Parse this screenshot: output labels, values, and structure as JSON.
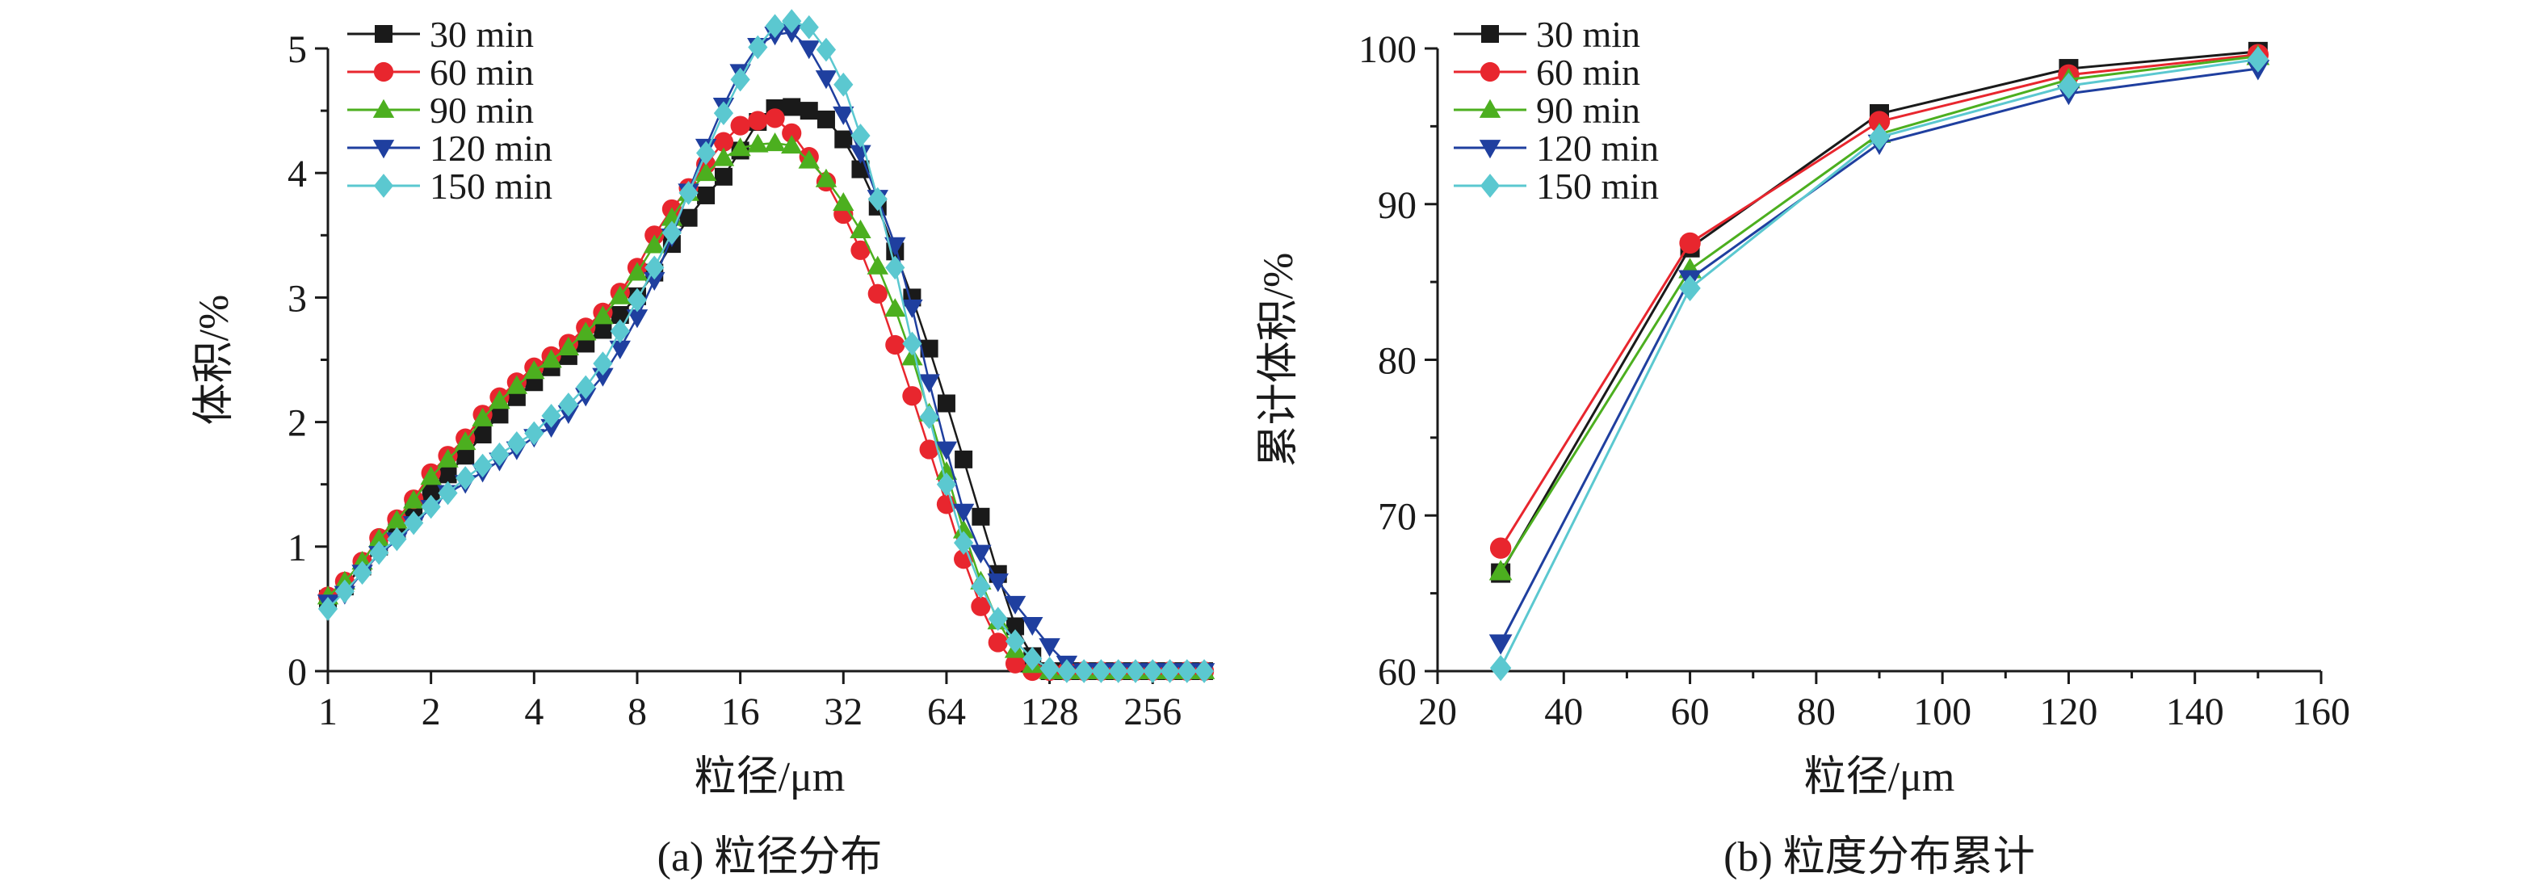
{
  "chart_data": [
    {
      "type": "line",
      "caption": "(a) 粒径分布",
      "xlabel": "粒径/μm",
      "ylabel": "体积/%",
      "xscale": "log2",
      "xlim": [
        1,
        380
      ],
      "ylim": [
        0,
        5
      ],
      "xticks": [
        1,
        2,
        4,
        8,
        16,
        32,
        64,
        128,
        256
      ],
      "xtick_labels": [
        "1",
        "2",
        "4",
        "8",
        "16",
        "32",
        "64",
        "128",
        "256"
      ],
      "yticks": [
        0,
        1,
        2,
        3,
        4,
        5
      ],
      "ytick_labels": [
        "0",
        "1",
        "2",
        "3",
        "4",
        "5"
      ],
      "legend_position": "top-left",
      "x": [
        1.0,
        1.12,
        1.26,
        1.41,
        1.59,
        1.78,
        2.0,
        2.24,
        2.52,
        2.83,
        3.17,
        3.56,
        4.0,
        4.49,
        5.04,
        5.66,
        6.35,
        7.13,
        8.0,
        8.98,
        10.1,
        11.3,
        12.7,
        14.3,
        16.0,
        18.0,
        20.2,
        22.6,
        25.4,
        28.5,
        32.0,
        35.9,
        40.3,
        45.3,
        50.8,
        57.0,
        64.0,
        71.8,
        80.6,
        90.5,
        101.6,
        114.0,
        128.0,
        143.7,
        161.3,
        181.0,
        203.2,
        228.1,
        256.0,
        287.4,
        322.5,
        362.0
      ],
      "series": [
        {
          "name": "30 min",
          "color": "#1a1a1a",
          "marker": "square",
          "values": [
            0.58,
            0.68,
            0.84,
            1.0,
            1.13,
            1.28,
            1.44,
            1.58,
            1.73,
            1.9,
            2.06,
            2.2,
            2.32,
            2.44,
            2.53,
            2.63,
            2.74,
            2.86,
            3.01,
            3.2,
            3.43,
            3.64,
            3.82,
            3.97,
            4.18,
            4.41,
            4.52,
            4.53,
            4.5,
            4.43,
            4.27,
            4.03,
            3.73,
            3.37,
            3.0,
            2.59,
            2.15,
            1.7,
            1.24,
            0.78,
            0.36,
            0.12,
            0.0,
            0.0,
            0.0,
            0.0,
            0.0,
            0.0,
            0.0,
            0.0,
            0.0,
            0.0
          ]
        },
        {
          "name": "60 min",
          "color": "#e8262e",
          "marker": "circle",
          "values": [
            0.6,
            0.72,
            0.88,
            1.07,
            1.22,
            1.38,
            1.59,
            1.73,
            1.87,
            2.06,
            2.2,
            2.32,
            2.44,
            2.53,
            2.63,
            2.76,
            2.88,
            3.04,
            3.24,
            3.5,
            3.71,
            3.88,
            4.07,
            4.25,
            4.38,
            4.42,
            4.44,
            4.32,
            4.13,
            3.93,
            3.67,
            3.38,
            3.03,
            2.62,
            2.21,
            1.78,
            1.34,
            0.9,
            0.52,
            0.23,
            0.06,
            0.0,
            0.0,
            0.0,
            0.0,
            0.0,
            0.0,
            0.0,
            0.0,
            0.0,
            0.0,
            0.0
          ]
        },
        {
          "name": "90 min",
          "color": "#4caf1f",
          "marker": "triangle-up",
          "values": [
            0.6,
            0.72,
            0.88,
            1.06,
            1.21,
            1.37,
            1.56,
            1.7,
            1.84,
            2.03,
            2.17,
            2.29,
            2.41,
            2.5,
            2.6,
            2.72,
            2.85,
            3.01,
            3.2,
            3.42,
            3.64,
            3.84,
            4.0,
            4.12,
            4.2,
            4.23,
            4.24,
            4.22,
            4.1,
            3.95,
            3.76,
            3.54,
            3.25,
            2.91,
            2.52,
            2.07,
            1.6,
            1.13,
            0.72,
            0.4,
            0.17,
            0.05,
            0.0,
            0.0,
            0.0,
            0.0,
            0.0,
            0.0,
            0.0,
            0.0,
            0.0,
            0.0
          ]
        },
        {
          "name": "120 min",
          "color": "#1f3f9f",
          "marker": "triangle-down",
          "values": [
            0.55,
            0.62,
            0.79,
            0.94,
            1.05,
            1.18,
            1.31,
            1.43,
            1.51,
            1.6,
            1.69,
            1.78,
            1.88,
            1.96,
            2.07,
            2.21,
            2.37,
            2.59,
            2.84,
            3.14,
            3.49,
            3.85,
            4.21,
            4.54,
            4.81,
            5.02,
            5.11,
            5.13,
            5.0,
            4.76,
            4.47,
            4.16,
            3.8,
            3.42,
            2.92,
            2.32,
            1.78,
            1.28,
            0.95,
            0.72,
            0.54,
            0.37,
            0.2,
            0.06,
            0.0,
            0.0,
            0.0,
            0.0,
            0.0,
            0.0,
            0.0,
            0.0
          ]
        },
        {
          "name": "150 min",
          "color": "#5bc8d0",
          "marker": "diamond",
          "values": [
            0.5,
            0.64,
            0.79,
            0.95,
            1.06,
            1.19,
            1.32,
            1.43,
            1.55,
            1.65,
            1.74,
            1.83,
            1.91,
            2.05,
            2.14,
            2.28,
            2.47,
            2.73,
            2.98,
            3.24,
            3.52,
            3.84,
            4.16,
            4.48,
            4.75,
            5.01,
            5.18,
            5.22,
            5.17,
            4.99,
            4.71,
            4.3,
            3.79,
            3.24,
            2.63,
            2.04,
            1.5,
            1.03,
            0.68,
            0.42,
            0.24,
            0.1,
            0.02,
            0.0,
            0.0,
            0.0,
            0.0,
            0.0,
            0.0,
            0.0,
            0.0,
            0.0
          ]
        }
      ]
    },
    {
      "type": "line",
      "caption": "(b) 粒度分布累计",
      "xlabel": "粒径/μm",
      "ylabel": "累计体积/%",
      "xlim": [
        20,
        160
      ],
      "ylim": [
        60,
        100
      ],
      "xticks": [
        20,
        40,
        60,
        80,
        100,
        120,
        140,
        160
      ],
      "xtick_labels": [
        "20",
        "40",
        "60",
        "80",
        "100",
        "120",
        "140",
        "160"
      ],
      "yticks": [
        60,
        70,
        80,
        90,
        100
      ],
      "ytick_labels": [
        "60",
        "70",
        "80",
        "90",
        "100"
      ],
      "legend_position": "top-left",
      "x": [
        30,
        60,
        90,
        120,
        150
      ],
      "series": [
        {
          "name": "30 min",
          "color": "#1a1a1a",
          "marker": "square",
          "values": [
            66.3,
            87.2,
            95.8,
            98.7,
            99.8
          ]
        },
        {
          "name": "60 min",
          "color": "#e8262e",
          "marker": "circle",
          "values": [
            67.9,
            87.5,
            95.3,
            98.3,
            99.6
          ]
        },
        {
          "name": "90 min",
          "color": "#4caf1f",
          "marker": "triangle-up",
          "values": [
            66.4,
            85.8,
            94.5,
            98.0,
            99.5
          ]
        },
        {
          "name": "120 min",
          "color": "#1f3f9f",
          "marker": "triangle-down",
          "values": [
            61.8,
            85.2,
            93.9,
            97.1,
            98.7
          ]
        },
        {
          "name": "150 min",
          "color": "#5bc8d0",
          "marker": "diamond",
          "values": [
            60.2,
            84.6,
            94.3,
            97.6,
            99.3
          ]
        }
      ]
    }
  ]
}
